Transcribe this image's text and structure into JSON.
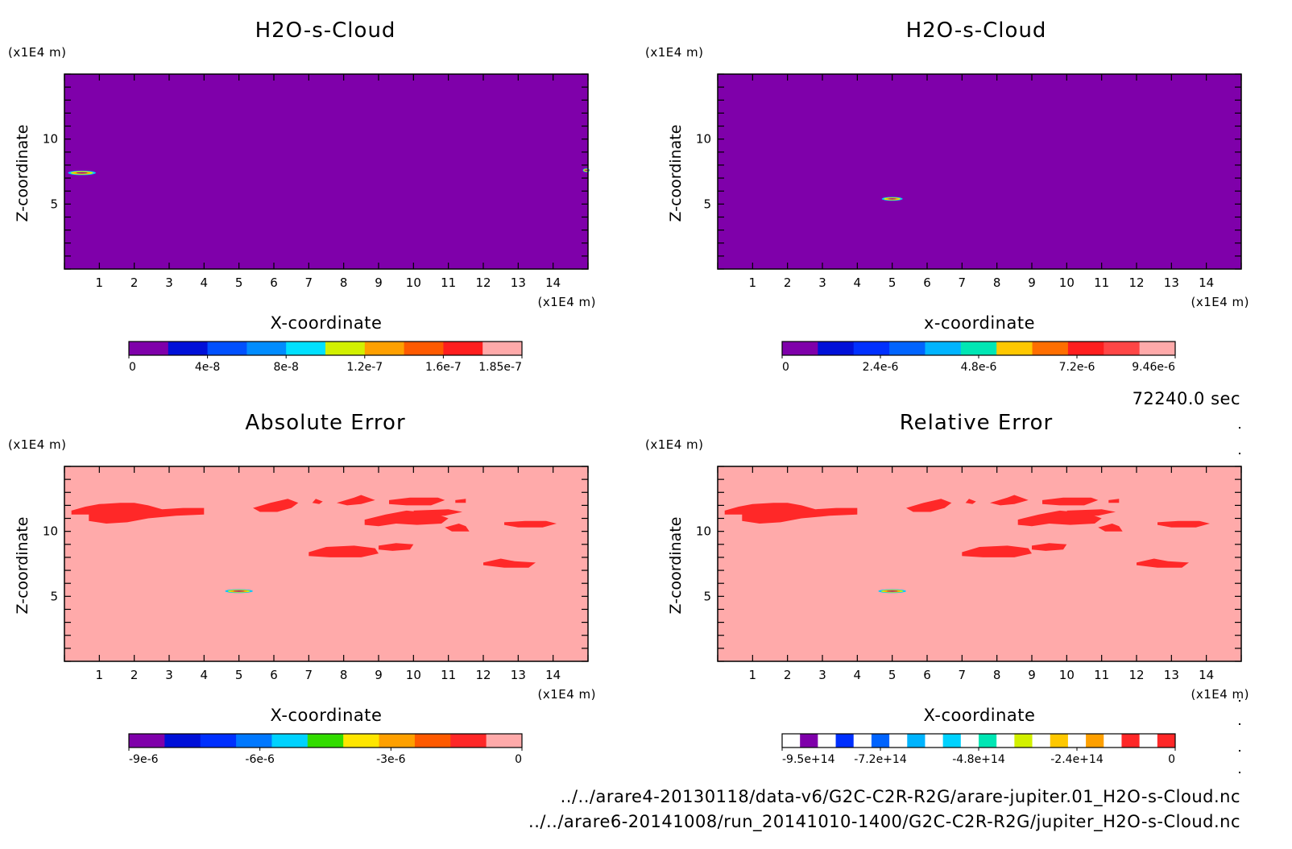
{
  "chart_data": [
    {
      "type": "heatmap",
      "title": "H2O-s-Cloud",
      "xlabel": "X-coordinate",
      "ylabel": "Z-coordinate",
      "x_unit": "(x1E4 m)",
      "y_unit": "(x1E4 m)",
      "xlim": [
        0,
        15
      ],
      "ylim": [
        0,
        15
      ],
      "x_ticks": [
        1,
        2,
        3,
        4,
        5,
        6,
        7,
        8,
        9,
        10,
        11,
        12,
        13,
        14
      ],
      "y_ticks": [
        5,
        10
      ],
      "background_color": "#7f00aa",
      "colorbar": {
        "colors": [
          "#7f00aa",
          "#0010d8",
          "#0050ff",
          "#008cff",
          "#00e0ff",
          "#d2f000",
          "#ffa000",
          "#ff5a00",
          "#ff1e1e",
          "#ffaaaa"
        ],
        "labels": [
          "0",
          "4e-8",
          "8e-8",
          "1.2e-7",
          "1.6e-7",
          "1.85e-7"
        ]
      },
      "features": [
        {
          "x": 0.5,
          "z": 7.4,
          "width": 0.8,
          "height": 0.35
        },
        {
          "x": 14.95,
          "z": 7.6,
          "width": 0.2,
          "height": 0.3
        }
      ]
    },
    {
      "type": "heatmap",
      "title": "H2O-s-Cloud",
      "xlabel": "x-coordinate",
      "ylabel": "Z-coordinate",
      "x_unit": "(x1E4 m)",
      "y_unit": "(x1E4 m)",
      "xlim": [
        0,
        15
      ],
      "ylim": [
        0,
        15
      ],
      "x_ticks": [
        1,
        2,
        3,
        4,
        5,
        6,
        7,
        8,
        9,
        10,
        11,
        12,
        13,
        14
      ],
      "y_ticks": [
        5,
        10
      ],
      "background_color": "#7f00aa",
      "colorbar": {
        "colors": [
          "#7f00aa",
          "#0010d8",
          "#0030ff",
          "#0064ff",
          "#00b4ff",
          "#00e6b4",
          "#ffc800",
          "#ff6e00",
          "#ff1e1e",
          "#ff4646",
          "#ffaaaa"
        ],
        "labels": [
          "0",
          "2.4e-6",
          "4.8e-6",
          "7.2e-6",
          "9.46e-6"
        ]
      },
      "features": [
        {
          "x": 5.0,
          "z": 5.4,
          "width": 0.6,
          "height": 0.3
        }
      ]
    },
    {
      "type": "heatmap",
      "title": "Absolute Error",
      "xlabel": "X-coordinate",
      "ylabel": "Z-coordinate",
      "x_unit": "(x1E4 m)",
      "y_unit": "(x1E4 m)",
      "xlim": [
        0,
        15
      ],
      "ylim": [
        0,
        15
      ],
      "x_ticks": [
        1,
        2,
        3,
        4,
        5,
        6,
        7,
        8,
        9,
        10,
        11,
        12,
        13,
        14
      ],
      "y_ticks": [
        5,
        10
      ],
      "background_color": "#ffaaaa",
      "colorbar": {
        "colors": [
          "#7f00aa",
          "#0010d8",
          "#0030ff",
          "#0078ff",
          "#00d2ff",
          "#32dc00",
          "#ffe600",
          "#ffa000",
          "#ff5a00",
          "#ff2828",
          "#ffaaaa"
        ],
        "labels": [
          "-9e-6",
          "-6e-6",
          "-3e-6",
          "0"
        ]
      },
      "features": [
        {
          "x": 5.0,
          "z": 5.4,
          "width": 0.8,
          "height": 0.3
        }
      ]
    },
    {
      "type": "heatmap",
      "title": "Relative Error",
      "xlabel": "X-coordinate",
      "ylabel": "Z-coordinate",
      "x_unit": "(x1E4 m)",
      "y_unit": "(x1E4 m)",
      "xlim": [
        0,
        15
      ],
      "ylim": [
        0,
        15
      ],
      "x_ticks": [
        1,
        2,
        3,
        4,
        5,
        6,
        7,
        8,
        9,
        10,
        11,
        12,
        13,
        14
      ],
      "y_ticks": [
        5,
        10
      ],
      "background_color": "#ffaaaa",
      "colorbar": {
        "colors": [
          "#ffffff",
          "#7f00aa",
          "#ffffff",
          "#0030ff",
          "#ffffff",
          "#0064ff",
          "#ffffff",
          "#00b4ff",
          "#ffffff",
          "#00d2ff",
          "#ffffff",
          "#00e6b4",
          "#ffffff",
          "#d2f000",
          "#ffffff",
          "#ffc800",
          "#ffffff",
          "#ffa000",
          "#ffffff",
          "#ff2828",
          "#ffffff",
          "#ff2828"
        ],
        "labels": [
          "-9.5e+14",
          "-7.2e+14",
          "-4.8e+14",
          "-2.4e+14",
          "0"
        ]
      },
      "features": [
        {
          "x": 5.0,
          "z": 5.4,
          "width": 0.8,
          "height": 0.3
        }
      ]
    }
  ],
  "time_label": "72240.0 sec",
  "file_paths": [
    "../../arare4-20130118/data-v6/G2C-C2R-R2G/arare-jupiter.01_H2O-s-Cloud.nc",
    "../../arare6-20141008/run_20141010-1400/G2C-C2R-R2G/jupiter_H2O-s-Cloud.nc"
  ]
}
